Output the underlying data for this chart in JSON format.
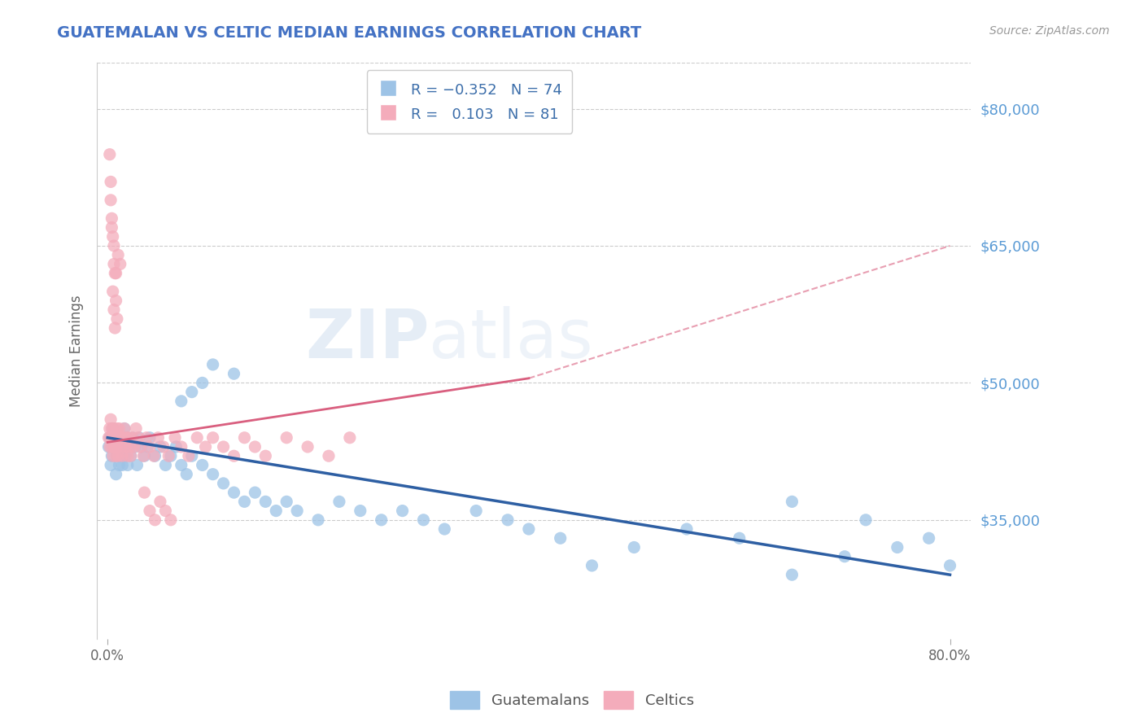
{
  "title": "GUATEMALAN VS CELTIC MEDIAN EARNINGS CORRELATION CHART",
  "source": "Source: ZipAtlas.com",
  "ylabel": "Median Earnings",
  "xlim": [
    -0.01,
    0.82
  ],
  "ylim": [
    22000,
    85000
  ],
  "yticks": [
    35000,
    50000,
    65000,
    80000
  ],
  "ytick_labels": [
    "$35,000",
    "$50,000",
    "$65,000",
    "$80,000"
  ],
  "xticks": [
    0.0,
    0.8
  ],
  "xtick_labels": [
    "0.0%",
    "80.0%"
  ],
  "title_color": "#4472c4",
  "axis_label_color": "#666666",
  "source_color": "#999999",
  "grid_color": "#cccccc",
  "blue_marker_color": "#9dc3e6",
  "pink_marker_color": "#f4acbb",
  "blue_trend_color": "#2e5fa3",
  "pink_trend_color": "#d95f7f",
  "blue_scatter_x": [
    0.001,
    0.002,
    0.003,
    0.004,
    0.005,
    0.006,
    0.007,
    0.008,
    0.009,
    0.01,
    0.011,
    0.012,
    0.013,
    0.014,
    0.015,
    0.016,
    0.017,
    0.018,
    0.019,
    0.02,
    0.022,
    0.024,
    0.026,
    0.028,
    0.03,
    0.032,
    0.035,
    0.038,
    0.04,
    0.045,
    0.05,
    0.055,
    0.06,
    0.065,
    0.07,
    0.075,
    0.08,
    0.09,
    0.1,
    0.11,
    0.12,
    0.13,
    0.14,
    0.15,
    0.16,
    0.17,
    0.18,
    0.2,
    0.22,
    0.24,
    0.26,
    0.28,
    0.3,
    0.32,
    0.35,
    0.38,
    0.4,
    0.43,
    0.46,
    0.5,
    0.55,
    0.6,
    0.65,
    0.7,
    0.75,
    0.78,
    0.8,
    0.65,
    0.72,
    0.1,
    0.12,
    0.08,
    0.09,
    0.07
  ],
  "blue_scatter_y": [
    43000,
    44000,
    41000,
    42000,
    45000,
    44000,
    43000,
    40000,
    42000,
    44000,
    41000,
    43000,
    42000,
    41000,
    43000,
    45000,
    42000,
    44000,
    41000,
    43000,
    42000,
    44000,
    43000,
    41000,
    44000,
    43000,
    42000,
    43000,
    44000,
    42000,
    43000,
    41000,
    42000,
    43000,
    41000,
    40000,
    42000,
    41000,
    40000,
    39000,
    38000,
    37000,
    38000,
    37000,
    36000,
    37000,
    36000,
    35000,
    37000,
    36000,
    35000,
    36000,
    35000,
    34000,
    36000,
    35000,
    34000,
    33000,
    30000,
    32000,
    34000,
    33000,
    29000,
    31000,
    32000,
    33000,
    30000,
    37000,
    35000,
    52000,
    51000,
    49000,
    50000,
    48000
  ],
  "pink_scatter_x": [
    0.001,
    0.002,
    0.002,
    0.003,
    0.003,
    0.004,
    0.004,
    0.005,
    0.005,
    0.006,
    0.006,
    0.007,
    0.007,
    0.008,
    0.008,
    0.009,
    0.009,
    0.01,
    0.01,
    0.011,
    0.012,
    0.013,
    0.014,
    0.015,
    0.016,
    0.017,
    0.018,
    0.019,
    0.02,
    0.021,
    0.022,
    0.023,
    0.025,
    0.027,
    0.029,
    0.031,
    0.034,
    0.037,
    0.04,
    0.044,
    0.048,
    0.053,
    0.058,
    0.064,
    0.07,
    0.077,
    0.085,
    0.093,
    0.1,
    0.11,
    0.12,
    0.13,
    0.14,
    0.15,
    0.17,
    0.19,
    0.21,
    0.23,
    0.003,
    0.004,
    0.006,
    0.008,
    0.01,
    0.012,
    0.002,
    0.003,
    0.004,
    0.005,
    0.006,
    0.005,
    0.006,
    0.007,
    0.007,
    0.008,
    0.009,
    0.035,
    0.04,
    0.045,
    0.05,
    0.055,
    0.06
  ],
  "pink_scatter_y": [
    44000,
    45000,
    43000,
    46000,
    44000,
    43000,
    45000,
    44000,
    42000,
    43000,
    45000,
    44000,
    43000,
    42000,
    44000,
    45000,
    43000,
    44000,
    42000,
    45000,
    44000,
    43000,
    42000,
    44000,
    45000,
    43000,
    44000,
    42000,
    44000,
    43000,
    42000,
    44000,
    43000,
    45000,
    44000,
    43000,
    42000,
    44000,
    43000,
    42000,
    44000,
    43000,
    42000,
    44000,
    43000,
    42000,
    44000,
    43000,
    44000,
    43000,
    42000,
    44000,
    43000,
    42000,
    44000,
    43000,
    42000,
    44000,
    70000,
    67000,
    65000,
    62000,
    64000,
    63000,
    75000,
    72000,
    68000,
    66000,
    63000,
    60000,
    58000,
    56000,
    62000,
    59000,
    57000,
    38000,
    36000,
    35000,
    37000,
    36000,
    35000
  ],
  "blue_trend_x0": 0.0,
  "blue_trend_y0": 44000,
  "blue_trend_x1": 0.8,
  "blue_trend_y1": 29000,
  "pink_trend_x0": 0.0,
  "pink_trend_y0": 43500,
  "pink_trend_x1": 0.4,
  "pink_trend_y1": 50500,
  "pink_trend_dashed_x0": 0.4,
  "pink_trend_dashed_y0": 50500,
  "pink_trend_dashed_x1": 0.8,
  "pink_trend_dashed_y1": 65000
}
